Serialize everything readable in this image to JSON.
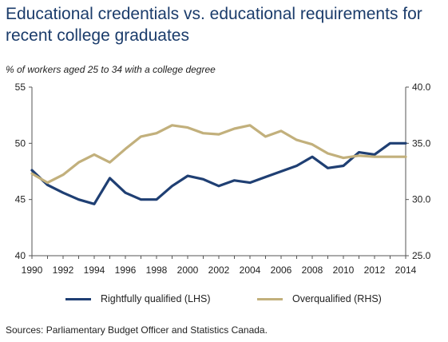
{
  "title": "Educational credentials vs. educational requirements for recent college graduates",
  "subtitle": "% of workers aged 25 to 34  with a college degree",
  "source": "Sources:   Parliamentary Budget Officer and Statistics Canada.",
  "chart_data": {
    "type": "line",
    "title": "Educational credentials vs. educational requirements for recent college graduates",
    "x": [
      1990,
      1991,
      1992,
      1993,
      1994,
      1995,
      1996,
      1997,
      1998,
      1999,
      2000,
      2001,
      2002,
      2003,
      2004,
      2005,
      2006,
      2007,
      2008,
      2009,
      2010,
      2011,
      2012,
      2013,
      2014
    ],
    "x_ticks": [
      "1990",
      "1992",
      "1994",
      "1996",
      "1998",
      "2000",
      "2002",
      "2004",
      "2006",
      "2008",
      "2010",
      "2012",
      "2014"
    ],
    "y_left": {
      "ticks": [
        "40",
        "45",
        "50",
        "55"
      ],
      "ylim": [
        40,
        55
      ]
    },
    "y_right": {
      "ticks": [
        "25.0",
        "30.0",
        "35.0",
        "40.0"
      ],
      "ylim": [
        25,
        40
      ]
    },
    "grid": false,
    "legend_position": "bottom",
    "series": [
      {
        "name": "Rightfully qualified (LHS)",
        "axis": "left",
        "color": "#1f3f73",
        "values": [
          47.6,
          46.3,
          45.6,
          45.0,
          44.6,
          46.9,
          45.6,
          45.0,
          45.0,
          46.2,
          47.1,
          46.8,
          46.2,
          46.7,
          46.5,
          47.0,
          47.5,
          48.0,
          48.8,
          47.8,
          48.0,
          49.2,
          49.0,
          50.0,
          50.0
        ]
      },
      {
        "name": "Overqualified (RHS)",
        "axis": "right",
        "color": "#c2b07c",
        "values": [
          32.3,
          31.5,
          32.2,
          33.3,
          34.0,
          33.3,
          34.5,
          35.6,
          35.9,
          36.6,
          36.4,
          35.9,
          35.8,
          36.3,
          36.6,
          35.6,
          36.1,
          35.3,
          34.9,
          34.1,
          33.7,
          33.9,
          33.8,
          33.8,
          33.8
        ]
      }
    ]
  }
}
